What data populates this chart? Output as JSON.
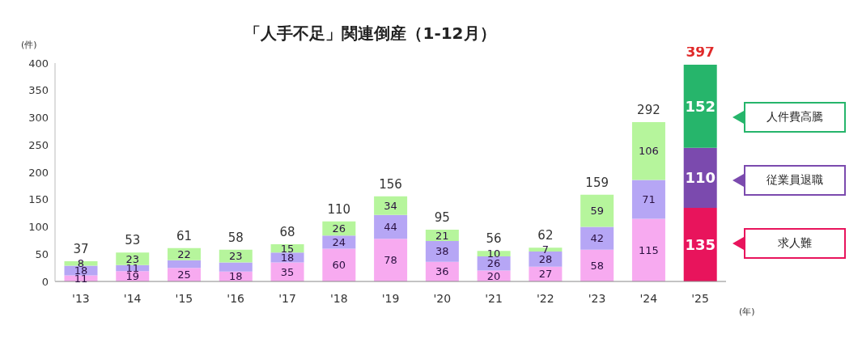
{
  "chart_data": {
    "type": "bar",
    "title": "「人手不足」関連倒産（1-12月）",
    "xlabel": "(年)",
    "ylabel": "(件)",
    "stacked": true,
    "legend": "right",
    "grid": false,
    "categories": [
      "'13",
      "'14",
      "'15",
      "'16",
      "'17",
      "'18",
      "'19",
      "'20",
      "'21",
      "'22",
      "'23",
      "'24",
      "'25"
    ],
    "ylim": [
      0,
      400
    ],
    "yticks": [
      0,
      50,
      100,
      150,
      200,
      250,
      300,
      350,
      400
    ],
    "series": [
      {
        "name": "求人難",
        "colors": [
          "#f7aaf0",
          "#f7aaf0",
          "#f7aaf0",
          "#f7aaf0",
          "#f7aaf0",
          "#f7aaf0",
          "#f7aaf0",
          "#f7aaf0",
          "#f7aaf0",
          "#f7aaf0",
          "#f7aaf0",
          "#f7aaf0",
          "#e8145c"
        ],
        "values": [
          11,
          19,
          25,
          18,
          35,
          60,
          78,
          36,
          20,
          27,
          58,
          115,
          135
        ],
        "value_labels": [
          "11",
          "19",
          "25",
          "18",
          "35",
          "60",
          "78",
          "36",
          "20",
          "27",
          "58",
          "115",
          "135"
        ]
      },
      {
        "name": "従業員退職",
        "colors": [
          "#b6a6f5",
          "#b6a6f5",
          "#b6a6f5",
          "#b6a6f5",
          "#b6a6f5",
          "#b6a6f5",
          "#b6a6f5",
          "#b6a6f5",
          "#b6a6f5",
          "#b6a6f5",
          "#b6a6f5",
          "#b6a6f5",
          "#7b4aae"
        ],
        "values": [
          18,
          11,
          14,
          17,
          18,
          24,
          44,
          38,
          26,
          28,
          42,
          71,
          110
        ],
        "value_labels": [
          "18",
          "11",
          null,
          null,
          "18",
          "24",
          "44",
          "38",
          "26",
          "28",
          "42",
          "71",
          "110"
        ]
      },
      {
        "name": "人件費高騰",
        "colors": [
          "#b6f59c",
          "#b6f59c",
          "#b6f59c",
          "#b6f59c",
          "#b6f59c",
          "#b6f59c",
          "#b6f59c",
          "#b6f59c",
          "#b6f59c",
          "#b6f59c",
          "#b6f59c",
          "#b6f59c",
          "#26b56b"
        ],
        "values": [
          8,
          23,
          22,
          23,
          15,
          26,
          34,
          21,
          10,
          7,
          59,
          106,
          152
        ],
        "value_labels": [
          "8",
          "23",
          "22",
          "23",
          "15",
          "26",
          "34",
          "21",
          "10",
          "7",
          "59",
          "106",
          "152"
        ]
      }
    ],
    "totals": [
      "37",
      "53",
      "61",
      "58",
      "68",
      "110",
      "156",
      "95",
      "56",
      "62",
      "159",
      "292",
      "397"
    ]
  }
}
